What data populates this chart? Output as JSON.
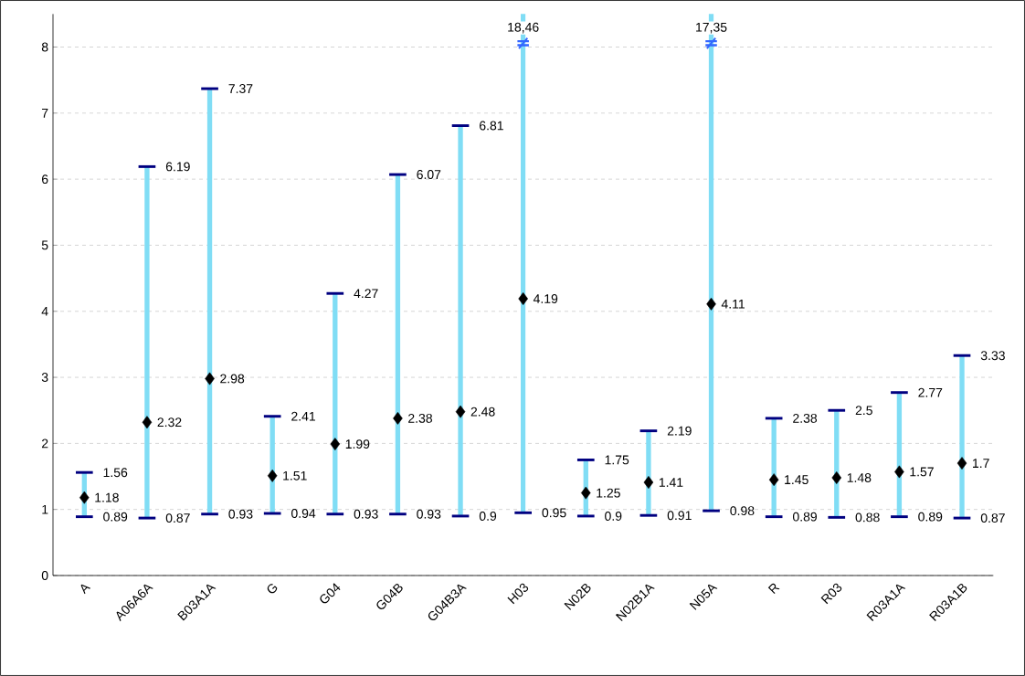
{
  "chart_data": {
    "type": "scatter",
    "categories": [
      "A",
      "A06A6A",
      "B03A1A",
      "G",
      "G04",
      "G04B",
      "G04B3A",
      "H03",
      "N02B",
      "N02B1A",
      "N05A",
      "R",
      "R03",
      "R03A1A",
      "R03A1B"
    ],
    "series": [
      {
        "color": "#000000",
        "marker": "diamond",
        "values": [
          1.18,
          2.32,
          2.98,
          1.51,
          1.99,
          2.38,
          2.48,
          4.19,
          1.25,
          1.41,
          4.11,
          1.45,
          1.48,
          1.57,
          1.7
        ],
        "errors": [
          [
            0.89,
            1.56
          ],
          [
            0.87,
            6.19
          ],
          [
            0.93,
            7.37
          ],
          [
            0.94,
            2.41
          ],
          [
            0.93,
            4.27
          ],
          [
            0.93,
            6.07
          ],
          [
            0.9,
            6.81
          ],
          [
            0.95,
            18.46
          ],
          [
            0.9,
            1.75
          ],
          [
            0.91,
            2.19
          ],
          [
            0.98,
            17.35
          ],
          [
            0.89,
            2.38
          ],
          [
            0.88,
            2.5
          ],
          [
            0.89,
            2.77
          ],
          [
            0.87,
            3.33
          ]
        ]
      }
    ],
    "data_labels": true,
    "ylim": [
      0,
      8.5
    ],
    "yticks": [
      0,
      1,
      2,
      3,
      4,
      5,
      6,
      7,
      8
    ],
    "grid": "y",
    "annotations": [
      {
        "text": "1.56",
        "x": "A",
        "y": 1.56
      },
      {
        "text": "0.89",
        "x": "A",
        "y": 0.89
      },
      {
        "text": "6.19",
        "x": "A06A6A",
        "y": 6.19
      },
      {
        "text": "0.87",
        "x": "A06A6A",
        "y": 0.87
      },
      {
        "text": "7.37",
        "x": "B03A1A",
        "y": 7.37
      },
      {
        "text": "0.93",
        "x": "B03A1A",
        "y": 0.93
      },
      {
        "text": "2.41",
        "x": "G",
        "y": 2.41
      },
      {
        "text": "0.94",
        "x": "G",
        "y": 0.94
      },
      {
        "text": "4.27",
        "x": "G04",
        "y": 4.27
      },
      {
        "text": "0.93",
        "x": "G04",
        "y": 0.93
      },
      {
        "text": "6.07",
        "x": "G04B",
        "y": 6.07
      },
      {
        "text": "0.93",
        "x": "G04B",
        "y": 0.93
      },
      {
        "text": "6.81",
        "x": "G04B3A",
        "y": 6.81
      },
      {
        "text": "0.9",
        "x": "G04B3A",
        "y": 0.9
      },
      "18,46",
      "≠",
      {
        "text": "0.95",
        "x": "H03",
        "y": 0.95
      },
      {
        "text": "1.75",
        "x": "N02B",
        "y": 1.75
      },
      {
        "text": "0.9",
        "x": "N02B",
        "y": 0.9
      },
      {
        "text": "2.19",
        "x": "N02B1A",
        "y": 2.19
      },
      {
        "text": "0.91",
        "x": "N02B1A",
        "y": 0.91
      },
      "17,35",
      "≠",
      {
        "text": "0.98",
        "x": "N05A",
        "y": 0.98
      },
      {
        "text": "2.38",
        "x": "R",
        "y": 2.38
      },
      {
        "text": "0.89",
        "x": "R",
        "y": 0.89
      },
      {
        "text": "2.5",
        "x": "R03",
        "y": 2.5
      },
      {
        "text": "0.88",
        "x": "R03",
        "y": 0.88
      },
      {
        "text": "2.77",
        "x": "R03A1A",
        "y": 2.77
      },
      {
        "text": "0.89",
        "x": "R03A1A",
        "y": 0.89
      },
      {
        "text": "3.33",
        "x": "R03A1B",
        "y": 3.33
      },
      {
        "text": "0.87",
        "x": "R03A1B",
        "y": 0.87
      }
    ]
  }
}
